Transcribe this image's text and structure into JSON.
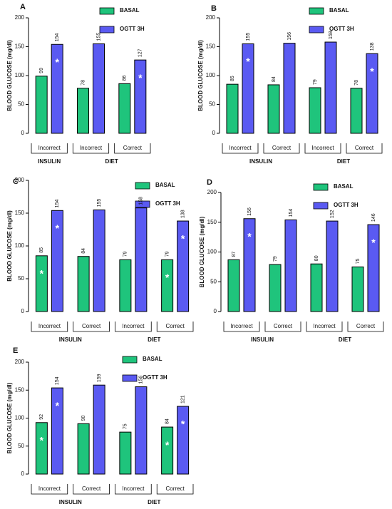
{
  "chart_data": [
    {
      "type": "bar",
      "title": "A",
      "ylabel": "BLOOD GLUCOSE (mg/dl)",
      "ylim": [
        0,
        200
      ],
      "yticks": [
        0,
        50,
        100,
        150,
        200
      ],
      "groups": [
        {
          "name": "INSULIN",
          "categories": [
            "Incorrect"
          ]
        },
        {
          "name": "DIET",
          "categories": [
            "Incorrect",
            "Correct"
          ]
        }
      ],
      "series": [
        {
          "name": "BASAL",
          "color": "#1fc47c",
          "values": [
            99,
            78,
            86
          ],
          "asterisks": [
            null,
            null,
            null
          ]
        },
        {
          "name": "OGTT 3H",
          "color": "#5a5af2",
          "values": [
            154,
            155,
            127
          ],
          "asterisks": [
            "*",
            null,
            "*"
          ]
        }
      ]
    },
    {
      "type": "bar",
      "title": "B",
      "ylabel": "BLOOD GLUCOSE (mg/dl)",
      "ylim": [
        0,
        200
      ],
      "yticks": [
        0,
        50,
        100,
        150,
        200
      ],
      "groups": [
        {
          "name": "INSULIN",
          "categories": [
            "Incorrect",
            "Correct"
          ]
        },
        {
          "name": "DIET",
          "categories": [
            "Incorrect",
            "Correct"
          ]
        }
      ],
      "series": [
        {
          "name": "BASAL",
          "color": "#1fc47c",
          "values": [
            85,
            84,
            79,
            78
          ],
          "asterisks": [
            null,
            null,
            null,
            null
          ]
        },
        {
          "name": "OGTT 3H",
          "color": "#5a5af2",
          "values": [
            155,
            156,
            158,
            138
          ],
          "asterisks": [
            "*",
            null,
            null,
            "*"
          ]
        }
      ]
    },
    {
      "type": "bar",
      "title": "C",
      "ylabel": "BLOOD GLUCOSE (mg/dl)",
      "ylim": [
        0,
        200
      ],
      "yticks": [
        0,
        50,
        100,
        150,
        200
      ],
      "groups": [
        {
          "name": "INSULIN",
          "categories": [
            "Incorrect",
            "Correct"
          ]
        },
        {
          "name": "DIET",
          "categories": [
            "Incorrect",
            "Correct"
          ]
        }
      ],
      "series": [
        {
          "name": "BASAL",
          "color": "#1fc47c",
          "values": [
            85,
            84,
            79,
            79
          ],
          "asterisks": [
            "*",
            null,
            null,
            "*"
          ]
        },
        {
          "name": "OGTT 3H",
          "color": "#5a5af2",
          "values": [
            154,
            155,
            158,
            138
          ],
          "asterisks": [
            "*",
            null,
            null,
            "*"
          ]
        }
      ]
    },
    {
      "type": "bar",
      "title": "D",
      "ylabel": "BLOOD GLUCOSE (mg/dl)",
      "ylim": [
        0,
        200
      ],
      "yticks": [
        0,
        50,
        100,
        150,
        200
      ],
      "groups": [
        {
          "name": "INSULIN",
          "categories": [
            "Incorrect",
            "Correct"
          ]
        },
        {
          "name": "DIET",
          "categories": [
            "Incorrect",
            "Correct"
          ]
        }
      ],
      "series": [
        {
          "name": "BASAL",
          "color": "#1fc47c",
          "values": [
            87,
            79,
            80,
            75
          ],
          "asterisks": [
            null,
            null,
            null,
            null
          ]
        },
        {
          "name": "OGTT 3H",
          "color": "#5a5af2",
          "values": [
            156,
            154,
            152,
            146
          ],
          "asterisks": [
            "*",
            null,
            null,
            "*"
          ]
        }
      ]
    },
    {
      "type": "bar",
      "title": "E",
      "ylabel": "BLOOD GLUCOSE (mg/dl)",
      "ylim": [
        0,
        200
      ],
      "yticks": [
        0,
        50,
        100,
        150,
        200
      ],
      "groups": [
        {
          "name": "INSULIN",
          "categories": [
            "Incorrect",
            "Correct"
          ]
        },
        {
          "name": "DIET",
          "categories": [
            "Incorrect",
            "Correct"
          ]
        }
      ],
      "series": [
        {
          "name": "BASAL",
          "color": "#1fc47c",
          "values": [
            92,
            90,
            75,
            84
          ],
          "asterisks": [
            "*",
            null,
            null,
            "*"
          ]
        },
        {
          "name": "OGTT 3H",
          "color": "#5a5af2",
          "values": [
            154,
            159,
            156,
            121
          ],
          "asterisks": [
            "*",
            null,
            null,
            "*"
          ]
        }
      ]
    }
  ]
}
